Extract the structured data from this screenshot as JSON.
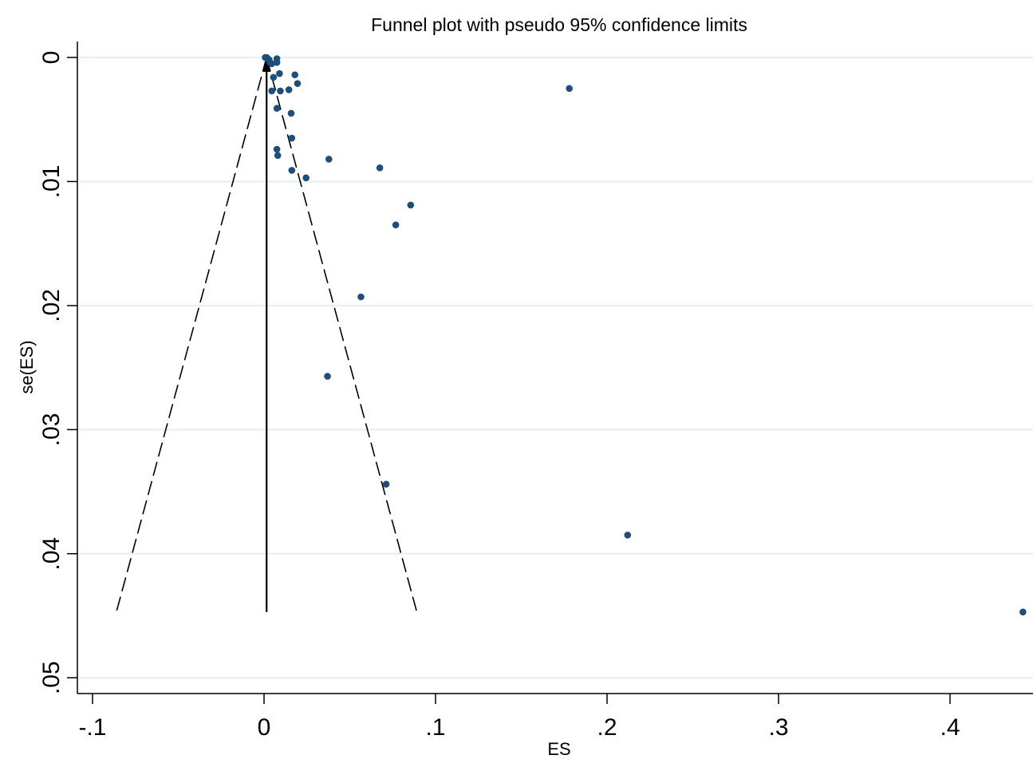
{
  "chart_data": {
    "type": "scatter",
    "title": "Funnel plot with pseudo 95% confidence limits",
    "xlabel": "ES",
    "ylabel": "se(ES)",
    "xlim": [
      -0.1,
      0.45
    ],
    "ylim": [
      0,
      0.05
    ],
    "y_reversed": true,
    "x_ticks": [
      -0.1,
      0,
      0.1,
      0.2,
      0.3,
      0.4
    ],
    "x_tick_labels": [
      "-.1",
      "0",
      ".1",
      ".2",
      ".3",
      ".4"
    ],
    "y_ticks": [
      0,
      0.01,
      0.02,
      0.03,
      0.04,
      0.05
    ],
    "y_tick_labels": [
      "0",
      ".01",
      ".02",
      ".03",
      ".04",
      ".05"
    ],
    "grid": "horizontal",
    "colors": {
      "points": "#1f4e79",
      "grid": "#e3eef0",
      "lines": "#000000"
    },
    "pooled_estimate": 0.0015,
    "funnel_max_se": 0.0447,
    "funnel_lines": [
      {
        "kind": "dashed",
        "x": [
          0.0015,
          -0.0861
        ],
        "y": [
          0,
          0.0447
        ]
      },
      {
        "kind": "dashed",
        "x": [
          0.0015,
          0.0891
        ],
        "y": [
          0,
          0.0447
        ]
      },
      {
        "kind": "solid",
        "x": [
          0.0015,
          0.0015
        ],
        "y": [
          0,
          0.0447
        ]
      }
    ],
    "points": [
      {
        "x": 0.0007,
        "y": 0.0
      },
      {
        "x": 0.0015,
        "y": 0.0
      },
      {
        "x": 0.0022,
        "y": 0.0001
      },
      {
        "x": 0.003,
        "y": 0.0002
      },
      {
        "x": 0.0035,
        "y": 0.0004
      },
      {
        "x": 0.0045,
        "y": 0.0005
      },
      {
        "x": 0.0075,
        "y": 0.0001
      },
      {
        "x": 0.0075,
        "y": 0.0004
      },
      {
        "x": 0.009,
        "y": 0.0013
      },
      {
        "x": 0.0055,
        "y": 0.0016
      },
      {
        "x": 0.018,
        "y": 0.0014
      },
      {
        "x": 0.0195,
        "y": 0.0021
      },
      {
        "x": 0.0045,
        "y": 0.0027
      },
      {
        "x": 0.0095,
        "y": 0.0027
      },
      {
        "x": 0.0145,
        "y": 0.0026
      },
      {
        "x": 0.178,
        "y": 0.0025
      },
      {
        "x": 0.0075,
        "y": 0.0041
      },
      {
        "x": 0.0158,
        "y": 0.0045
      },
      {
        "x": 0.0162,
        "y": 0.0065
      },
      {
        "x": 0.0075,
        "y": 0.0074
      },
      {
        "x": 0.008,
        "y": 0.0079
      },
      {
        "x": 0.0378,
        "y": 0.0082
      },
      {
        "x": 0.0675,
        "y": 0.0089
      },
      {
        "x": 0.0162,
        "y": 0.0091
      },
      {
        "x": 0.0245,
        "y": 0.0097
      },
      {
        "x": 0.0855,
        "y": 0.0119
      },
      {
        "x": 0.0768,
        "y": 0.0135
      },
      {
        "x": 0.0565,
        "y": 0.0193
      },
      {
        "x": 0.037,
        "y": 0.0257
      },
      {
        "x": 0.0712,
        "y": 0.0344
      },
      {
        "x": 0.212,
        "y": 0.0385
      },
      {
        "x": 0.4425,
        "y": 0.0447
      }
    ]
  }
}
